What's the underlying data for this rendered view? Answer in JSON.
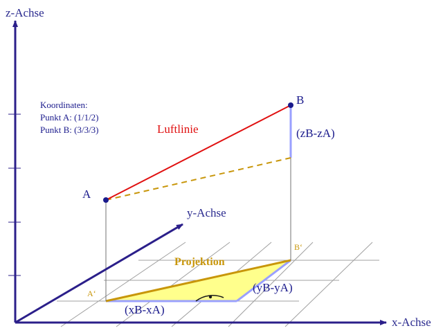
{
  "axes": {
    "z_label": "z-Achse",
    "x_label": "x-Achse",
    "y_label": "y-Achse"
  },
  "info": {
    "heading": "Koordinaten:",
    "line_a": "Punkt A: (1/1/2)",
    "line_b": "Punkt B: (3/3/3)"
  },
  "points": {
    "a_label": "A",
    "b_label": "B",
    "a_proj_label": "A‘",
    "b_proj_label": "B‘"
  },
  "segments": {
    "luftlinie": "Luftlinie",
    "projektion": "Projektion",
    "dz": "(zB-zA)",
    "dx": "(xB-xA)",
    "dy": "(yB-yA)"
  },
  "colors": {
    "axis": "#2b1f8a",
    "luftlinie": "#e01010",
    "projection": "#c8960a",
    "triangle_fill": "#ffff8c",
    "triangle_edge": "#9aa0ff",
    "point": "#1a1a8c"
  }
}
